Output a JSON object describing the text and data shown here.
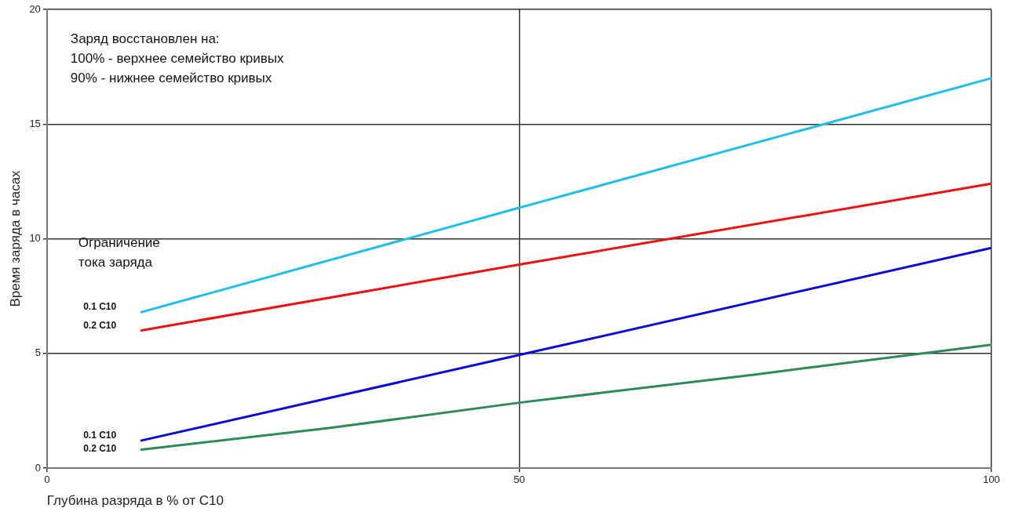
{
  "chart_data": {
    "type": "line",
    "xlabel": "Глубина разряда в % от С10",
    "ylabel": "Время заряда в часах",
    "xlim": [
      0,
      100
    ],
    "xticks": [
      0,
      50,
      100
    ],
    "ylim": [
      0,
      20
    ],
    "yticks": [
      0,
      5,
      10,
      15,
      20
    ],
    "grid": true,
    "legend": false,
    "marker": "none",
    "line_style": "solid",
    "annotations": [
      "Заряд восстановлен на:",
      "100% - верхнее семейство кривых",
      "90% - нижнее семейство кривых",
      "Ограничение\nтока заряда"
    ],
    "series": [
      {
        "name": "0.1 C10",
        "color": "#1ec0e8",
        "x": [
          10,
          50,
          100
        ],
        "values": [
          6.8,
          11.35,
          17.0
        ]
      },
      {
        "name": "0.2 C10",
        "color": "#ee1111",
        "x": [
          10,
          50,
          100
        ],
        "values": [
          6.0,
          8.87,
          12.4
        ]
      },
      {
        "name": "0.1 C10",
        "color": "#0a0adc",
        "x": [
          10,
          50,
          100
        ],
        "values": [
          1.2,
          4.93,
          9.6
        ]
      },
      {
        "name": "0.2 C10",
        "color": "#2e8b57",
        "x": [
          10,
          30,
          50,
          75,
          100
        ],
        "values": [
          0.8,
          1.75,
          2.85,
          4.08,
          5.38
        ]
      }
    ]
  }
}
